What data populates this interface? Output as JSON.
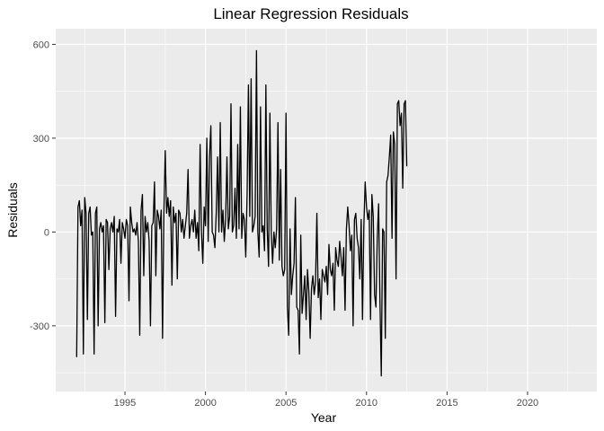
{
  "chart_data": {
    "type": "line",
    "title": "Linear Regression Residuals",
    "xlabel": "Year",
    "ylabel": "Residuals",
    "xlim": [
      1990.7,
      2024.3
    ],
    "ylim": [
      -510,
      650
    ],
    "x_ticks": [
      1995,
      2000,
      2005,
      2010,
      2015,
      2020
    ],
    "x_tick_labels": [
      "1995",
      "2000",
      "2005",
      "2010",
      "2015",
      "2020"
    ],
    "y_ticks": [
      -300,
      0,
      300,
      600
    ],
    "y_tick_labels": [
      "-300",
      "0",
      "300",
      "600"
    ],
    "grid": true,
    "legend": "none",
    "colors": {
      "panel": "#ebebeb",
      "grid_major": "#ffffff",
      "line": "#000000",
      "tick_label": "#4d4d4d"
    },
    "series": [
      {
        "x_start": 1992.0,
        "x_step": 0.0833333,
        "values": [
          -400,
          80,
          100,
          20,
          70,
          -390,
          110,
          60,
          -280,
          60,
          80,
          -10,
          0,
          -390,
          60,
          80,
          -300,
          10,
          30,
          0,
          20,
          -290,
          40,
          30,
          -120,
          10,
          30,
          0,
          50,
          -270,
          10,
          0,
          40,
          -100,
          30,
          10,
          -20,
          40,
          20,
          -220,
          80,
          30,
          0,
          10,
          -10,
          30,
          -30,
          -330,
          70,
          120,
          -140,
          50,
          0,
          30,
          -30,
          -300,
          20,
          30,
          160,
          -140,
          70,
          50,
          10,
          70,
          -340,
          60,
          260,
          60,
          110,
          50,
          100,
          -170,
          80,
          30,
          60,
          -150,
          70,
          60,
          0,
          40,
          -20,
          20,
          60,
          200,
          -20,
          20,
          40,
          0,
          70,
          -20,
          30,
          -60,
          280,
          0,
          -100,
          80,
          20,
          300,
          -30,
          240,
          340,
          0,
          -10,
          -50,
          60,
          240,
          0,
          350,
          0,
          70,
          -30,
          40,
          240,
          10,
          50,
          410,
          0,
          20,
          140,
          -20,
          280,
          10,
          400,
          -20,
          60,
          40,
          -80,
          120,
          470,
          50,
          490,
          0,
          20,
          50,
          580,
          0,
          -80,
          400,
          0,
          20,
          -60,
          470,
          10,
          -110,
          380,
          0,
          -100,
          0,
          -50,
          10,
          350,
          -90,
          200,
          -110,
          -140,
          -120,
          380,
          -240,
          -330,
          10,
          -200,
          -140,
          -100,
          110,
          -240,
          -250,
          -390,
          -10,
          -260,
          -200,
          -140,
          -280,
          -120,
          -190,
          -340,
          -180,
          -140,
          -200,
          -160,
          60,
          -210,
          -150,
          -280,
          -120,
          -140,
          -160,
          -110,
          -200,
          -40,
          -120,
          -140,
          -100,
          -250,
          -50,
          -90,
          -110,
          -30,
          -80,
          -140,
          -50,
          -250,
          10,
          80,
          20,
          -60,
          -10,
          -300,
          40,
          60,
          -20,
          -50,
          -150,
          40,
          -280,
          20,
          160,
          80,
          40,
          70,
          -280,
          120,
          50,
          -200,
          -240,
          -20,
          90,
          -220,
          -460,
          10,
          0,
          -340,
          160,
          180,
          240,
          310,
          -20,
          320,
          280,
          -150,
          410,
          420,
          340,
          380,
          140,
          410,
          420,
          210
        ]
      }
    ]
  }
}
